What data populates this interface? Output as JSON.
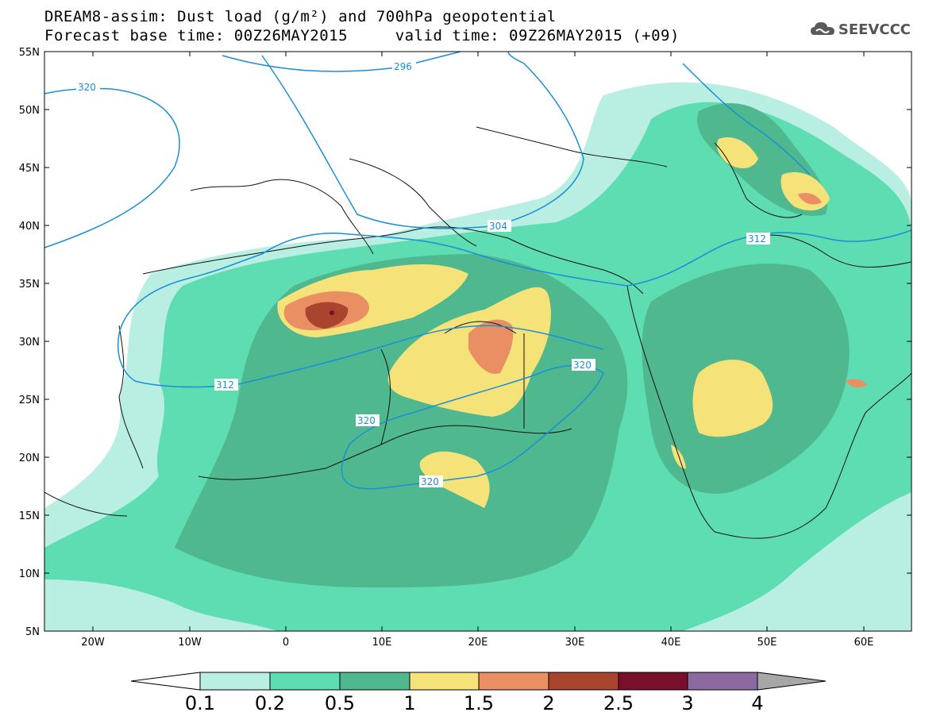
{
  "title": {
    "line1": "DREAM8-assim: Dust load (g/m²) and 700hPa geopotential",
    "line2": "Forecast base time: 00Z26MAY2015     valid time: 09Z26MAY2015 (+09)"
  },
  "logo": {
    "text": "SEEVCCC",
    "icon": "cloud-logo-icon"
  },
  "map": {
    "lat_labels": [
      "55N",
      "50N",
      "45N",
      "40N",
      "35N",
      "30N",
      "25N",
      "20N",
      "15N",
      "10N",
      "5N"
    ],
    "lon_labels": [
      "20W",
      "10W",
      "0",
      "10E",
      "20E",
      "30E",
      "40E",
      "50E",
      "60E"
    ],
    "geopotential_labels": [
      "320",
      "296",
      "304",
      "312",
      "312",
      "320",
      "320",
      "320"
    ]
  },
  "colorbar": {
    "labels": [
      "0.1",
      "0.2",
      "0.5",
      "1",
      "1.5",
      "2",
      "2.5",
      "3",
      "4"
    ],
    "colors": [
      "#b8efe2",
      "#5edcb2",
      "#4fb88e",
      "#f5e37a",
      "#ea8e64",
      "#a9452f",
      "#7a0f2c",
      "#8c6a9f",
      "#a7a7a7"
    ]
  }
}
